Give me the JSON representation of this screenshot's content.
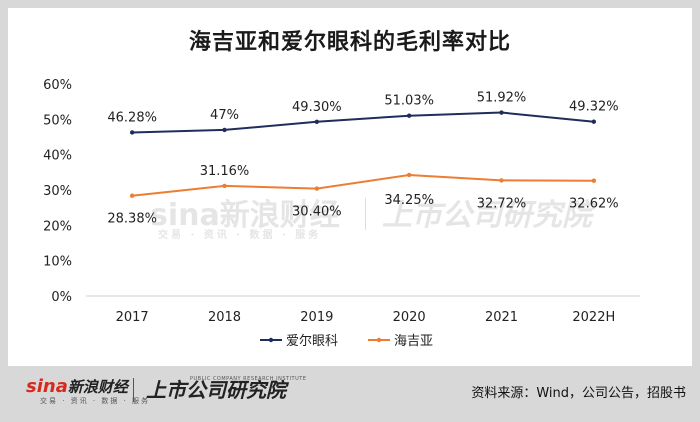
{
  "chart_data": {
    "type": "line",
    "title": "海吉亚和爱尔眼科的毛利率对比",
    "categories": [
      "2017",
      "2018",
      "2019",
      "2020",
      "2021",
      "2022H"
    ],
    "y_ticks": [
      "0%",
      "10%",
      "20%",
      "30%",
      "40%",
      "50%",
      "60%"
    ],
    "ylim": [
      0,
      60
    ],
    "grid": false,
    "legend_position": "bottom",
    "series": [
      {
        "name": "爱尔眼科",
        "color": "#1f2d5c",
        "values": [
          46.28,
          47,
          49.3,
          51.03,
          51.92,
          49.32
        ],
        "labels": [
          "46.28%",
          "47%",
          "49.30%",
          "51.03%",
          "51.92%",
          "49.32%"
        ]
      },
      {
        "name": "海吉亚",
        "color": "#ed7d31",
        "values": [
          28.38,
          31.16,
          30.4,
          34.25,
          32.72,
          32.62
        ],
        "labels": [
          "28.38%",
          "31.16%",
          "30.40%",
          "34.25%",
          "32.72%",
          "32.62%"
        ]
      }
    ]
  },
  "watermark": {
    "logo": "sina新浪财经",
    "sub": "交易 · 资讯 · 数据 · 服务",
    "institute": "上市公司研究院"
  },
  "footer": {
    "logo_mark": "sina",
    "logo_text": "新浪财经",
    "logo_sub": "交易 · 资讯 · 数据 · 服务",
    "institute": "上市公司研究院",
    "institute_en": "PUBLIC COMPANY RESEARCH INSTITUTE",
    "source": "资料来源：Wind，公司公告，招股书"
  }
}
